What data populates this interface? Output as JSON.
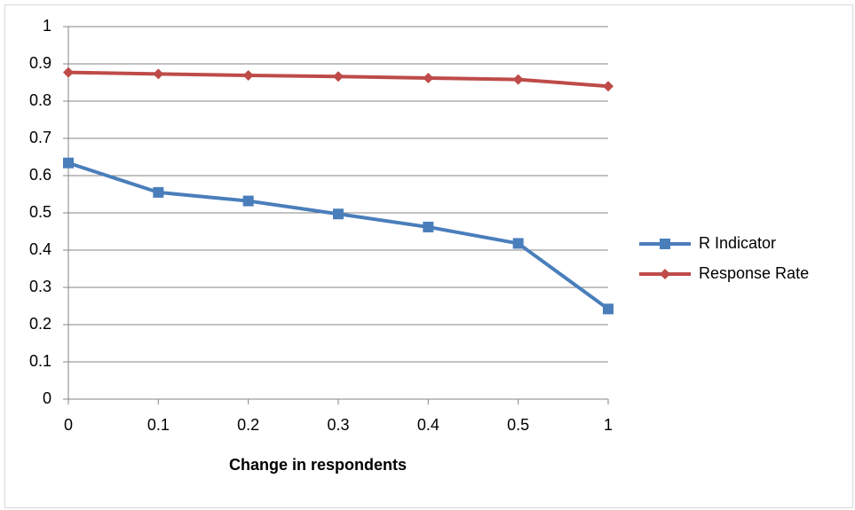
{
  "chart_data": {
    "type": "line",
    "x_label": "Change in respondents",
    "categories": [
      "0",
      "0.1",
      "0.2",
      "0.3",
      "0.4",
      "0.5",
      "1"
    ],
    "series": [
      {
        "name": "R Indicator",
        "color": "#4a7ebb",
        "marker": "square",
        "values": [
          0.634,
          0.555,
          0.532,
          0.497,
          0.462,
          0.418,
          0.242
        ]
      },
      {
        "name": "Response Rate",
        "color": "#be4b48",
        "marker": "diamond",
        "values": [
          0.877,
          0.873,
          0.869,
          0.866,
          0.862,
          0.858,
          0.84
        ]
      }
    ],
    "ylim": [
      0,
      1
    ],
    "yticks": [
      0,
      0.1,
      0.2,
      0.3,
      0.4,
      0.5,
      0.6,
      0.7,
      0.8,
      0.9,
      1
    ],
    "grid": true,
    "legend": "right"
  }
}
